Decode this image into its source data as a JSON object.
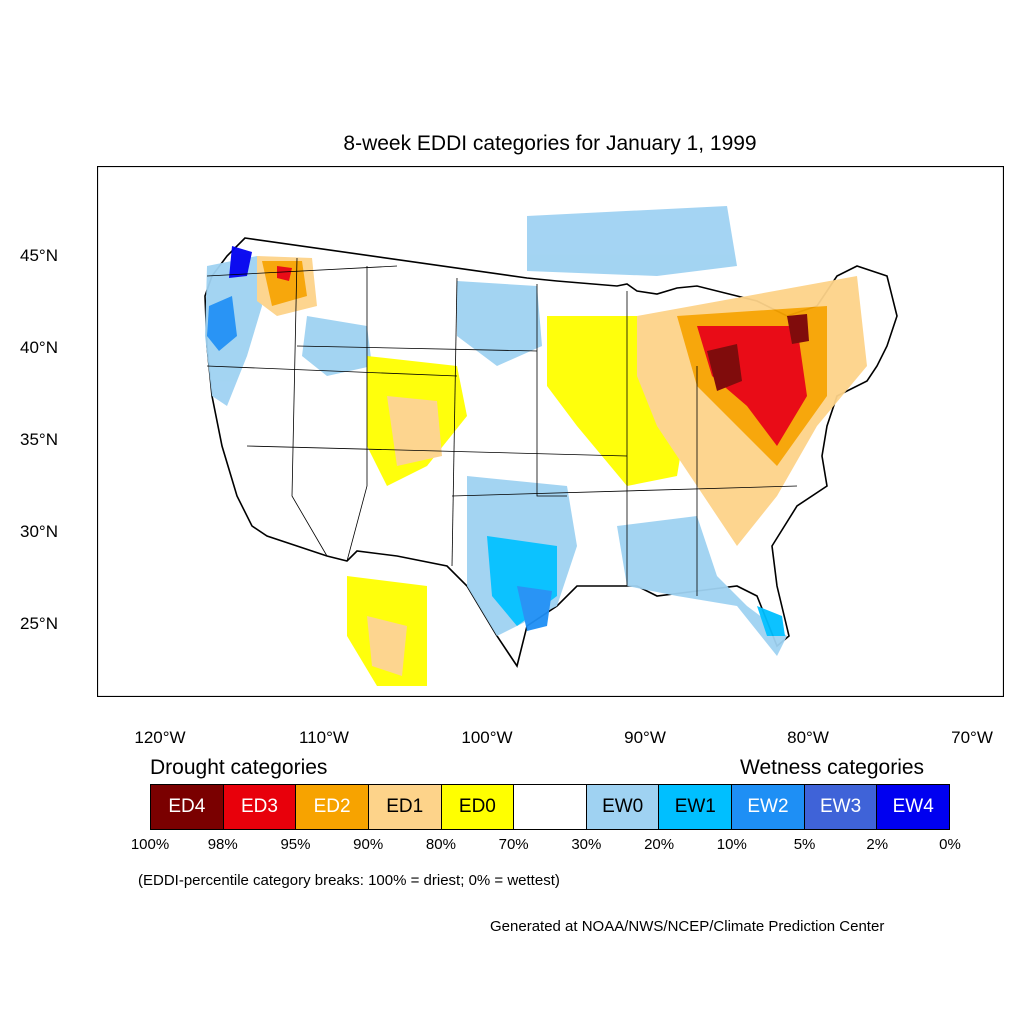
{
  "title": "8-week EDDI categories for January 1, 1999",
  "lat_labels": [
    "45°N",
    "40°N",
    "35°N",
    "30°N",
    "25°N"
  ],
  "lon_labels": [
    "120°W",
    "110°W",
    "100°W",
    "90°W",
    "80°W",
    "70°W"
  ],
  "legend": {
    "drought_heading": "Drought categories",
    "wetness_heading": "Wetness categories",
    "categories": [
      {
        "label": "ED4",
        "color": "#7a0000",
        "text_color": "#ffffff"
      },
      {
        "label": "ED3",
        "color": "#e8000b",
        "text_color": "#ffffff"
      },
      {
        "label": "ED2",
        "color": "#f7a300",
        "text_color": "#ffffff"
      },
      {
        "label": "ED1",
        "color": "#fdd38a",
        "text_color": "#000000"
      },
      {
        "label": "ED0",
        "color": "#ffff00",
        "text_color": "#000000"
      },
      {
        "label": "",
        "color": "#ffffff",
        "text_color": "#000000"
      },
      {
        "label": "EW0",
        "color": "#9fd2f2",
        "text_color": "#000000"
      },
      {
        "label": "EW1",
        "color": "#00bfff",
        "text_color": "#000000"
      },
      {
        "label": "EW2",
        "color": "#1e8ff5",
        "text_color": "#ffffff"
      },
      {
        "label": "EW3",
        "color": "#3f63d8",
        "text_color": "#ffffff"
      },
      {
        "label": "EW4",
        "color": "#0000f0",
        "text_color": "#ffffff"
      }
    ],
    "breaks": [
      "100%",
      "98%",
      "95%",
      "90%",
      "80%",
      "70%",
      "30%",
      "20%",
      "10%",
      "5%",
      "2%",
      "0%"
    ]
  },
  "note": "(EDDI-percentile category breaks: 100% = driest; 0% = wettest)",
  "credit": "Generated at NOAA/NWS/NCEP/Climate Prediction Center"
}
